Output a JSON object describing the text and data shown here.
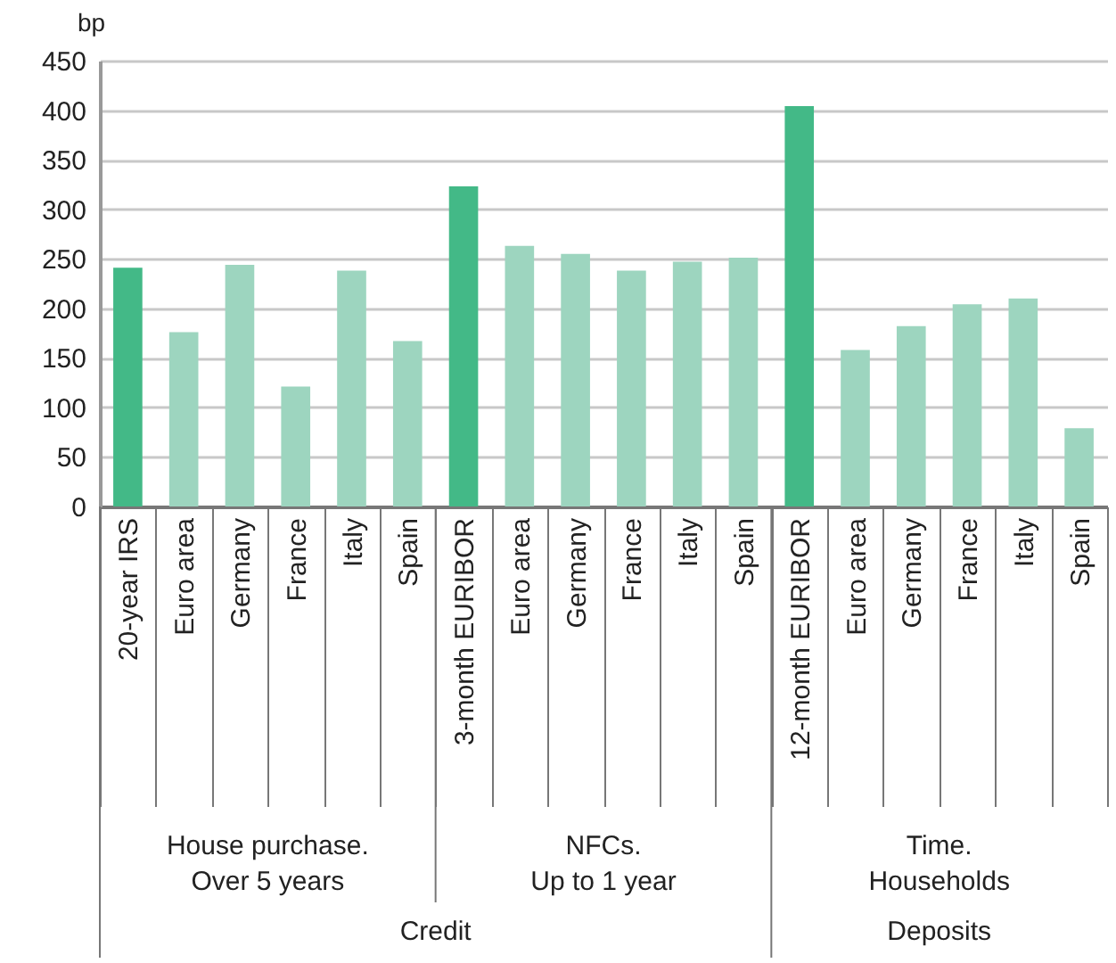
{
  "chart_data": {
    "type": "bar",
    "ylabel": "bp",
    "categories": [
      "20-year IRS",
      "Euro area",
      "Germany",
      "France",
      "Italy",
      "Spain",
      "3-month EURIBOR",
      "Euro area",
      "Germany",
      "France",
      "Italy",
      "Spain",
      "12-month EURIBOR",
      "Euro area",
      "Germany",
      "France",
      "Italy",
      "Spain"
    ],
    "values": [
      241,
      176,
      244,
      121,
      238,
      167,
      323,
      263,
      255,
      238,
      247,
      251,
      404,
      158,
      182,
      204,
      210,
      79
    ],
    "colors": [
      "#43b987",
      "#9dd5bf",
      "#9dd5bf",
      "#9dd5bf",
      "#9dd5bf",
      "#9dd5bf",
      "#43b987",
      "#9dd5bf",
      "#9dd5bf",
      "#9dd5bf",
      "#9dd5bf",
      "#9dd5bf",
      "#43b987",
      "#9dd5bf",
      "#9dd5bf",
      "#9dd5bf",
      "#9dd5bf",
      "#9dd5bf"
    ],
    "ylim": [
      0,
      450
    ],
    "yticks": [
      0,
      50,
      100,
      150,
      200,
      250,
      300,
      350,
      400,
      450
    ],
    "grid": "y",
    "annotations": [
      "House purchase. Over 5 years",
      "NFCs. Up to 1 year",
      "Time. Households",
      "Credit",
      "Deposits"
    ]
  }
}
